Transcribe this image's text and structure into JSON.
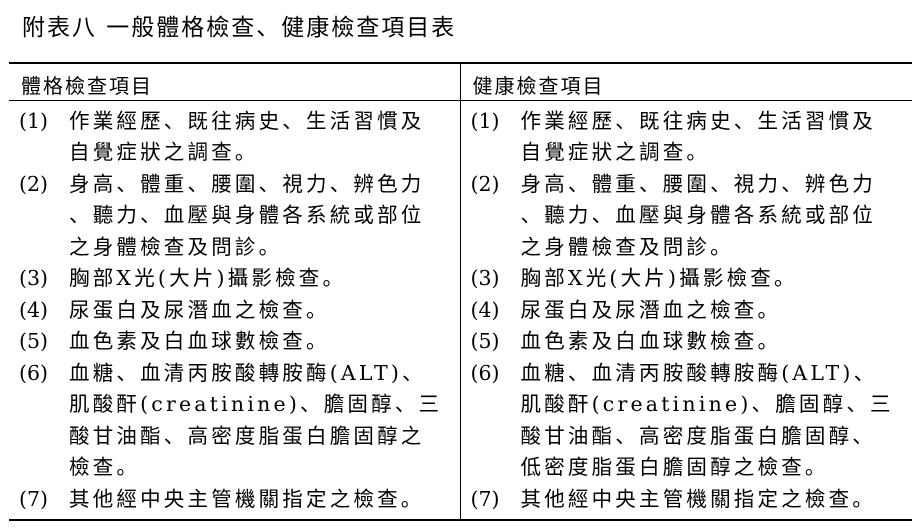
{
  "title": "附表八 一般體格檢查、健康檢查項目表",
  "columns": [
    {
      "header": "體格檢查項目",
      "items": [
        {
          "num": "(1)",
          "lines": [
            "作業經歷、既往病史、生活習慣及",
            "自覺症狀之調查。"
          ]
        },
        {
          "num": "(2)",
          "lines": [
            "身高、體重、腰圍、視力、辨色力",
            "、聽力、血壓與身體各系統或部位",
            "之身體檢查及問診。"
          ]
        },
        {
          "num": "(3)",
          "lines": [
            "胸部X光(大片)攝影檢查。"
          ]
        },
        {
          "num": "(4)",
          "lines": [
            "尿蛋白及尿潛血之檢查。"
          ]
        },
        {
          "num": "(5)",
          "lines": [
            "血色素及白血球數檢查。"
          ]
        },
        {
          "num": "(6)",
          "lines": [
            "血糖、血清丙胺酸轉胺酶(ALT)、",
            "肌酸酐(creatinine)、膽固醇、三",
            "酸甘油酯、高密度脂蛋白膽固醇之",
            "檢查。"
          ]
        },
        {
          "num": "(7)",
          "lines": [
            "其他經中央主管機關指定之檢查。"
          ]
        }
      ]
    },
    {
      "header": "健康檢查項目",
      "items": [
        {
          "num": "(1)",
          "lines": [
            "作業經歷、既往病史、生活習慣及",
            "自覺症狀之調查。"
          ]
        },
        {
          "num": "(2)",
          "lines": [
            "身高、體重、腰圍、視力、辨色力",
            "、聽力、血壓與身體各系統或部位",
            "之身體檢查及問診。"
          ]
        },
        {
          "num": "(3)",
          "lines": [
            "胸部X光(大片)攝影檢查。"
          ]
        },
        {
          "num": "(4)",
          "lines": [
            "尿蛋白及尿潛血之檢查。"
          ]
        },
        {
          "num": "(5)",
          "lines": [
            "血色素及白血球數檢查。"
          ]
        },
        {
          "num": "(6)",
          "lines": [
            "血糖、血清丙胺酸轉胺酶(ALT)、",
            "肌酸酐(creatinine)、膽固醇、三",
            "酸甘油酯、高密度脂蛋白膽固醇、",
            "低密度脂蛋白膽固醇之檢查。"
          ]
        },
        {
          "num": "(7)",
          "lines": [
            "其他經中央主管機關指定之檢查。"
          ]
        }
      ]
    }
  ]
}
